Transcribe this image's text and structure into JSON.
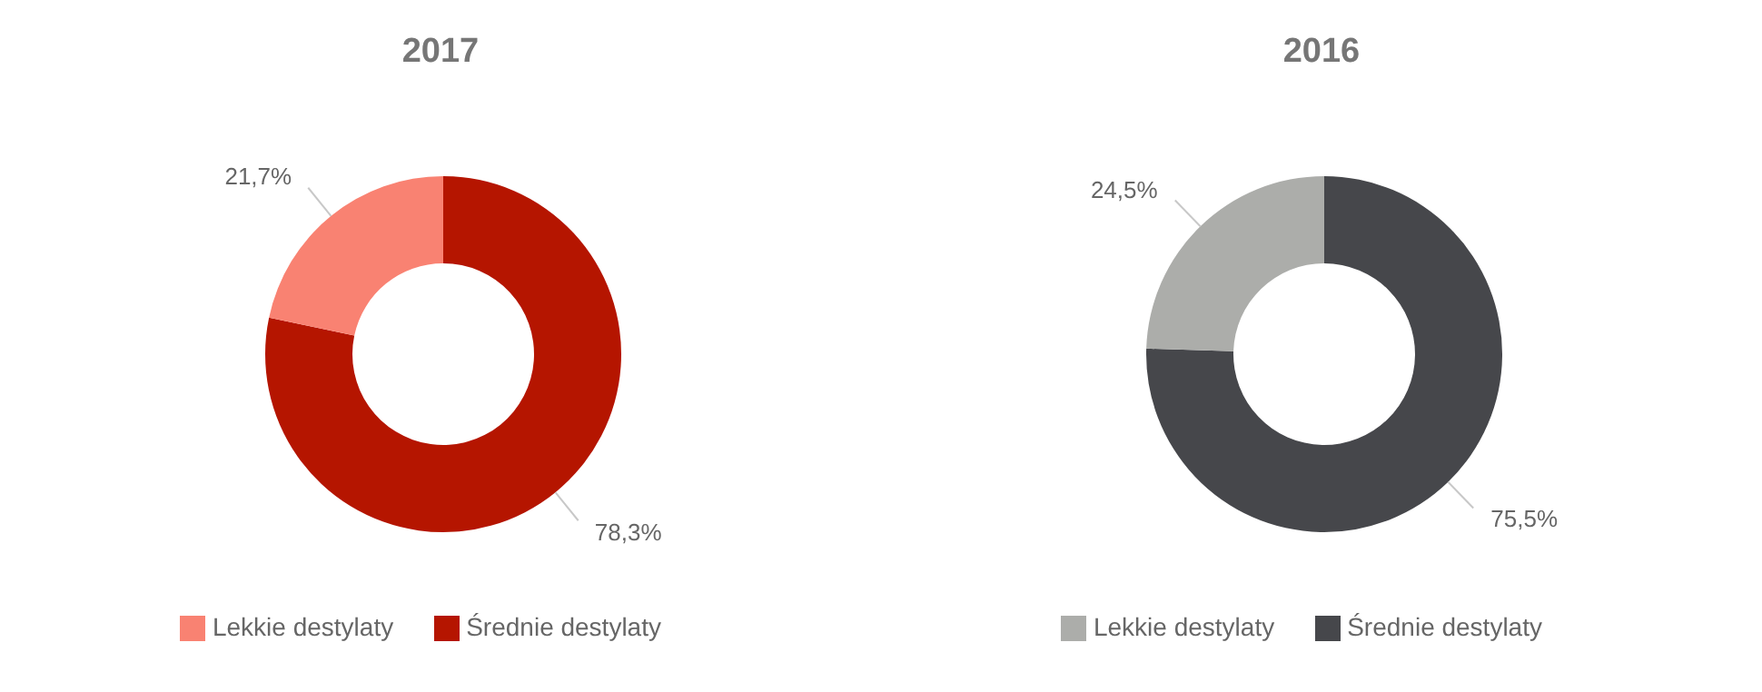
{
  "chart_data": [
    {
      "type": "donut",
      "title": "2017",
      "categories": [
        "Średnie destylaty",
        "Lekkie destylaty"
      ],
      "values": [
        78.3,
        21.7
      ],
      "colors": [
        "#b51500",
        "#f98272"
      ],
      "value_labels": [
        "78,3%",
        "21,7%"
      ],
      "legend": "bottom"
    },
    {
      "type": "donut",
      "title": "2016",
      "categories": [
        "Średnie destylaty",
        "Lekkie destylaty"
      ],
      "values": [
        75.5,
        24.5
      ],
      "colors": [
        "#46474b",
        "#acadaa"
      ],
      "value_labels": [
        "75,5%",
        "24,5%"
      ],
      "legend": "bottom"
    }
  ]
}
